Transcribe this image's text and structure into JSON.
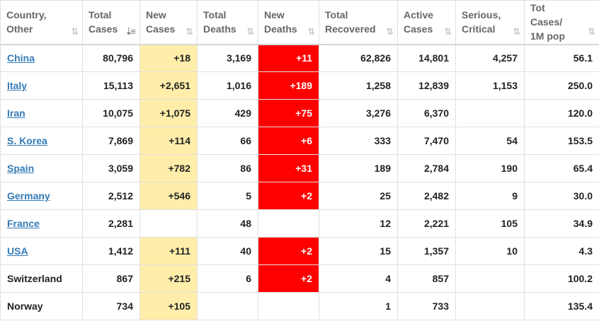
{
  "columns": [
    {
      "l1": "Country,",
      "l2": "Other",
      "sort": "both"
    },
    {
      "l1": "Total",
      "l2": "Cases",
      "sort": "desc"
    },
    {
      "l1": "New",
      "l2": "Cases",
      "sort": "both"
    },
    {
      "l1": "Total",
      "l2": "Deaths",
      "sort": "both"
    },
    {
      "l1": "New",
      "l2": "Deaths",
      "sort": "both"
    },
    {
      "l1": "Total",
      "l2": "Recovered",
      "sort": "both"
    },
    {
      "l1": "Active",
      "l2": "Cases",
      "sort": "both"
    },
    {
      "l1": "Serious,",
      "l2": "Critical",
      "sort": "both"
    },
    {
      "l1": "Tot Cases/",
      "l2": "1M pop",
      "sort": "both"
    }
  ],
  "sort_icons": {
    "both": "⇅",
    "desc": "⇣≡"
  },
  "colors": {
    "new_cases_bg": "#ffeeaa",
    "new_deaths_bg": "#ff0000",
    "link": "#337ab7"
  },
  "rows": [
    {
      "country": "China",
      "link": true,
      "total_cases": "80,796",
      "new_cases": "+18",
      "total_deaths": "3,169",
      "new_deaths": "+11",
      "total_recovered": "62,826",
      "active_cases": "14,801",
      "serious_critical": "4,257",
      "per_million": "56.1"
    },
    {
      "country": "Italy",
      "link": true,
      "total_cases": "15,113",
      "new_cases": "+2,651",
      "total_deaths": "1,016",
      "new_deaths": "+189",
      "total_recovered": "1,258",
      "active_cases": "12,839",
      "serious_critical": "1,153",
      "per_million": "250.0"
    },
    {
      "country": "Iran",
      "link": true,
      "total_cases": "10,075",
      "new_cases": "+1,075",
      "total_deaths": "429",
      "new_deaths": "+75",
      "total_recovered": "3,276",
      "active_cases": "6,370",
      "serious_critical": "",
      "per_million": "120.0"
    },
    {
      "country": "S. Korea",
      "link": true,
      "total_cases": "7,869",
      "new_cases": "+114",
      "total_deaths": "66",
      "new_deaths": "+6",
      "total_recovered": "333",
      "active_cases": "7,470",
      "serious_critical": "54",
      "per_million": "153.5"
    },
    {
      "country": "Spain",
      "link": true,
      "total_cases": "3,059",
      "new_cases": "+782",
      "total_deaths": "86",
      "new_deaths": "+31",
      "total_recovered": "189",
      "active_cases": "2,784",
      "serious_critical": "190",
      "per_million": "65.4"
    },
    {
      "country": "Germany",
      "link": true,
      "total_cases": "2,512",
      "new_cases": "+546",
      "total_deaths": "5",
      "new_deaths": "+2",
      "total_recovered": "25",
      "active_cases": "2,482",
      "serious_critical": "9",
      "per_million": "30.0"
    },
    {
      "country": "France",
      "link": true,
      "total_cases": "2,281",
      "new_cases": "",
      "total_deaths": "48",
      "new_deaths": "",
      "total_recovered": "12",
      "active_cases": "2,221",
      "serious_critical": "105",
      "per_million": "34.9"
    },
    {
      "country": "USA",
      "link": true,
      "total_cases": "1,412",
      "new_cases": "+111",
      "total_deaths": "40",
      "new_deaths": "+2",
      "total_recovered": "15",
      "active_cases": "1,357",
      "serious_critical": "10",
      "per_million": "4.3"
    },
    {
      "country": "Switzerland",
      "link": false,
      "total_cases": "867",
      "new_cases": "+215",
      "total_deaths": "6",
      "new_deaths": "+2",
      "total_recovered": "4",
      "active_cases": "857",
      "serious_critical": "",
      "per_million": "100.2"
    },
    {
      "country": "Norway",
      "link": false,
      "total_cases": "734",
      "new_cases": "+105",
      "total_deaths": "",
      "new_deaths": "",
      "total_recovered": "1",
      "active_cases": "733",
      "serious_critical": "",
      "per_million": "135.4"
    }
  ]
}
